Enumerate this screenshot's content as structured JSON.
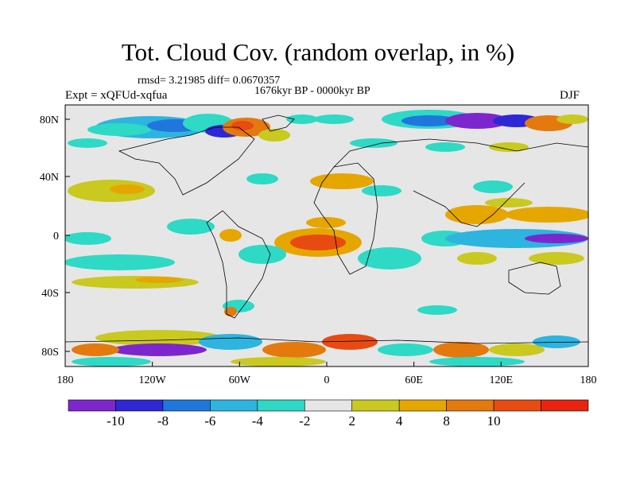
{
  "title": "Tot. Cloud Cov. (random overlap, in %)",
  "stats_line": "rmsd= 3.21985  diff= 0.0670357",
  "period": "1676kyr BP - 0000kyr BP",
  "experiment": "Expt = xQFUd-xqfua",
  "season": "DJF",
  "lat_ticks": [
    "80N",
    "40N",
    "0",
    "40S",
    "80S"
  ],
  "lon_ticks": [
    "180",
    "120W",
    "60W",
    "0",
    "60E",
    "120E",
    "180"
  ],
  "colorbar": {
    "colors": [
      "#7d26cd",
      "#2d27d6",
      "#1f77dd",
      "#2db4df",
      "#2ed9c6",
      "#e6e6e6",
      "#c9c91f",
      "#e6a600",
      "#e4790e",
      "#e84b12",
      "#e8230f"
    ],
    "labels": [
      "-10",
      "-8",
      "-6",
      "-4",
      "-2",
      "2",
      "4",
      "8",
      "10"
    ]
  },
  "background_color": "#e6e6e6"
}
